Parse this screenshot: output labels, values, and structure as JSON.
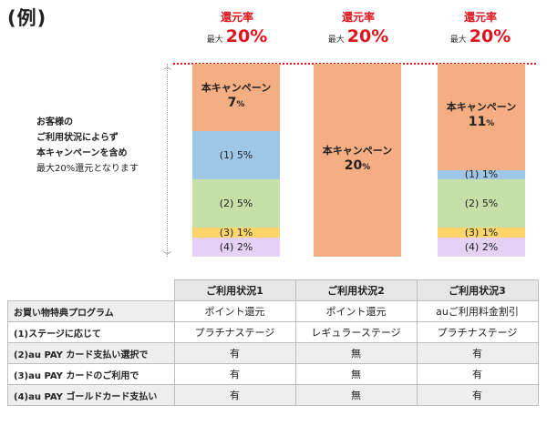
{
  "heading": "(例)",
  "note": [
    "お客様の",
    "ご利用状況によらず",
    "本キャンペーンを含め",
    "最大20%還元となります"
  ],
  "colors": {
    "campaign": "#f4ae82",
    "s1": "#9ec6e7",
    "s2": "#c6e0a7",
    "s3": "#fbd56a",
    "s4": "#e5d1f6",
    "accent": "#e0141e"
  },
  "columns": [
    {
      "rate_label": "還元率",
      "rate_max": "最大",
      "rate_value": "20%",
      "segments": [
        {
          "key": "campaign",
          "title": "本キャンペーン",
          "pct": "7",
          "value": 7
        },
        {
          "key": "s1",
          "label": "(1) 5%",
          "value": 5
        },
        {
          "key": "s2",
          "label": "(2) 5%",
          "value": 5
        },
        {
          "key": "s3",
          "label": "(3) 1%",
          "value": 1
        },
        {
          "key": "s4",
          "label": "(4) 2%",
          "value": 2
        }
      ]
    },
    {
      "rate_label": "還元率",
      "rate_max": "最大",
      "rate_value": "20%",
      "segments": [
        {
          "key": "campaign",
          "title": "本キャンペーン",
          "pct": "20",
          "value": 20
        }
      ]
    },
    {
      "rate_label": "還元率",
      "rate_max": "最大",
      "rate_value": "20%",
      "segments": [
        {
          "key": "campaign",
          "title": "本キャンペーン",
          "pct": "11",
          "value": 11
        },
        {
          "key": "s1",
          "label": "(1) 1%",
          "value": 1
        },
        {
          "key": "s2",
          "label": "(2) 5%",
          "value": 5
        },
        {
          "key": "s3",
          "label": "(3) 1%",
          "value": 1
        },
        {
          "key": "s4",
          "label": "(4) 2%",
          "value": 2
        }
      ]
    }
  ],
  "table": {
    "headers": [
      "ご利用状況1",
      "ご利用状況2",
      "ご利用状況3"
    ],
    "rows": [
      {
        "label": "お買い物特典プログラム",
        "cells": [
          "ポイント還元",
          "ポイント還元",
          "auご利用料金割引"
        ]
      },
      {
        "label": "(1)ステージに応じて",
        "cells": [
          "プラチナステージ",
          "レギュラーステージ",
          "プラチナステージ"
        ]
      },
      {
        "label": "(2)au PAY カード支払い選択で",
        "cells": [
          "有",
          "無",
          "有"
        ]
      },
      {
        "label": "(3)au PAY カードのご利用で",
        "cells": [
          "有",
          "無",
          "有"
        ]
      },
      {
        "label": "(4)au PAY ゴールドカード支払い",
        "cells": [
          "有",
          "無",
          "有"
        ]
      }
    ]
  }
}
